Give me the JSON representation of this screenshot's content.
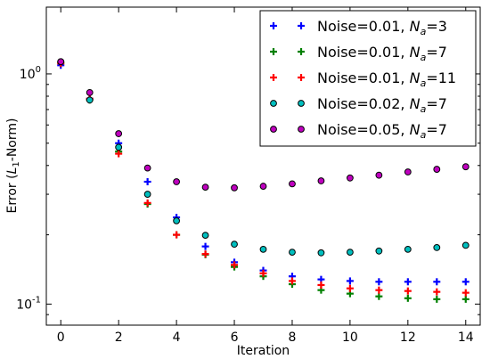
{
  "chart_data": {
    "type": "scatter",
    "xlabel": "Iteration",
    "ylabel": {
      "prefix": "Error (",
      "math": "L",
      "sub": "1",
      "suffix": "-Norm)"
    },
    "xlim": [
      -0.5,
      14.5
    ],
    "ylim": [
      0.081,
      1.95
    ],
    "yscale": "log",
    "x_ticks": [
      0,
      2,
      4,
      6,
      8,
      10,
      12,
      14
    ],
    "x_tick_labels": [
      "0",
      "2",
      "4",
      "6",
      "8",
      "10",
      "12",
      "14"
    ],
    "y_ticks": [
      {
        "value": 1,
        "base": "10",
        "exp": "0"
      },
      {
        "value": 0.1,
        "base": "10",
        "exp": "-1"
      }
    ],
    "grid": false,
    "legend_position": "top-right",
    "x": [
      0,
      1,
      2,
      3,
      4,
      5,
      6,
      7,
      8,
      9,
      10,
      11,
      12,
      13,
      14
    ],
    "series": [
      {
        "name": {
          "prefix": "Noise=0.01, ",
          "var": "N",
          "sub": "a",
          "suffix": "=3"
        },
        "marker": "plus",
        "color": "#0000ff",
        "values": [
          1.09,
          0.78,
          0.5,
          0.34,
          0.238,
          0.178,
          0.152,
          0.14,
          0.132,
          0.128,
          0.126,
          0.125,
          0.125,
          0.125,
          0.125
        ]
      },
      {
        "name": {
          "prefix": "Noise=0.01, ",
          "var": "N",
          "sub": "a",
          "suffix": "=7"
        },
        "marker": "plus",
        "color": "#008000",
        "values": [
          1.12,
          0.77,
          0.46,
          0.272,
          0.2,
          0.164,
          0.145,
          0.132,
          0.122,
          0.115,
          0.111,
          0.108,
          0.106,
          0.105,
          0.105
        ]
      },
      {
        "name": {
          "prefix": "Noise=0.01, ",
          "var": "N",
          "sub": "a",
          "suffix": "=11"
        },
        "marker": "plus",
        "color": "#ff0000",
        "values": [
          1.11,
          0.78,
          0.45,
          0.275,
          0.2,
          0.165,
          0.148,
          0.136,
          0.126,
          0.121,
          0.117,
          0.115,
          0.114,
          0.113,
          0.112
        ]
      },
      {
        "name": {
          "prefix": "Noise=0.02, ",
          "var": "N",
          "sub": "a",
          "suffix": "=7"
        },
        "marker": "circle",
        "color": "#00bfbf",
        "values": [
          1.13,
          0.77,
          0.48,
          0.3,
          0.23,
          0.199,
          0.182,
          0.173,
          0.168,
          0.167,
          0.168,
          0.17,
          0.173,
          0.176,
          0.18
        ]
      },
      {
        "name": {
          "prefix": "Noise=0.05, ",
          "var": "N",
          "sub": "a",
          "suffix": "=7"
        },
        "marker": "circle",
        "color": "#bf00bf",
        "values": [
          1.13,
          0.83,
          0.55,
          0.39,
          0.34,
          0.322,
          0.32,
          0.325,
          0.333,
          0.343,
          0.353,
          0.363,
          0.375,
          0.385,
          0.395
        ]
      }
    ]
  }
}
